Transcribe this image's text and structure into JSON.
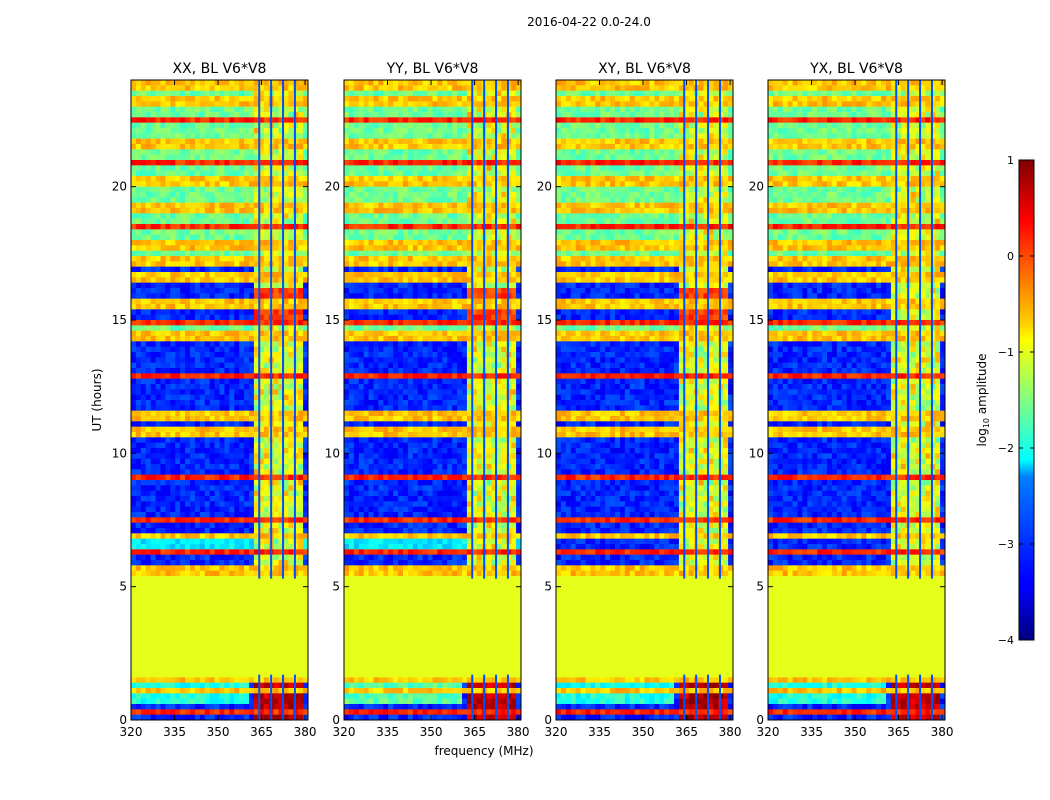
{
  "figure": {
    "suptitle": "2016-04-22 0.0-24.0",
    "ylabel": "UT (hours)",
    "xlabel": "frequency (MHz)"
  },
  "chart_data": {
    "type": "heatmap",
    "title": "2016-04-22 0.0-24.0",
    "xlabel": "frequency (MHz)",
    "ylabel": "UT (hours)",
    "xlim": [
      320,
      381
    ],
    "ylim": [
      0,
      24
    ],
    "xticks": [
      320,
      335,
      350,
      365,
      380
    ],
    "yticks": [
      0,
      5,
      10,
      15,
      20
    ],
    "panels": [
      {
        "title": "XX, BL V6*V8"
      },
      {
        "title": "YY, BL V6*V8"
      },
      {
        "title": "XY, BL V6*V8"
      },
      {
        "title": "YX, BL V6*V8"
      }
    ],
    "colorbar": {
      "label": "log",
      "label_sub": "10",
      "label_suffix": " amplitude",
      "range": [
        -4,
        1
      ],
      "ticks": [
        1,
        0,
        -1,
        -2,
        -3,
        -4
      ],
      "tick_labels": [
        "1",
        "0",
        "−1",
        "−2",
        "−3",
        "−4"
      ],
      "colormap": "jet"
    },
    "regions_log_amplitude": {
      "flagged_band_hours": [
        1.7,
        5.3
      ],
      "flagged_value": -1.0,
      "quiet_background": -3.2,
      "busy_background": -1.6,
      "rfi_band_mhz": [
        363,
        380
      ],
      "rfi_band_value": -0.7,
      "strong_rfi_hours": [
        0.1,
        1.6
      ],
      "strong_rfi_value": 0.6
    },
    "colors": {
      "axis": "#000000",
      "background": "#ffffff"
    }
  }
}
